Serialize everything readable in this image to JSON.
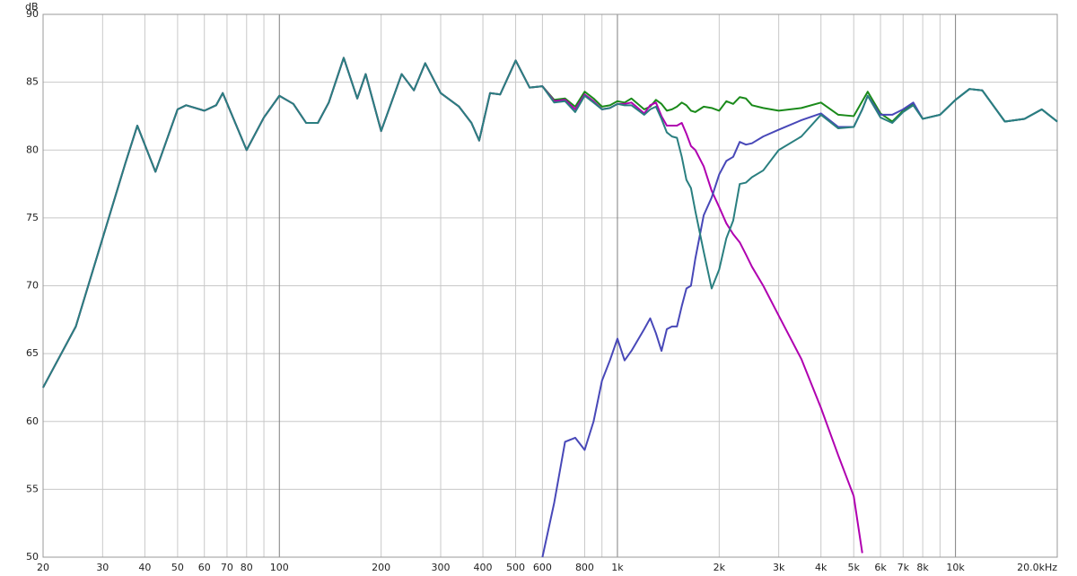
{
  "chart_data": {
    "type": "line",
    "log_x": true,
    "grid": true,
    "y_label": "dB",
    "xlim": [
      20,
      20000
    ],
    "ylim": [
      50,
      90
    ],
    "yticks": [
      50,
      55,
      60,
      65,
      70,
      75,
      80,
      85,
      90
    ],
    "xticks": [
      20,
      30,
      40,
      50,
      60,
      70,
      80,
      100,
      200,
      300,
      400,
      500,
      600,
      800,
      {
        "value": 1000,
        "label": "1k"
      },
      {
        "value": 2000,
        "label": "2k"
      },
      {
        "value": 3000,
        "label": "3k"
      },
      {
        "value": 4000,
        "label": "4k"
      },
      {
        "value": 5000,
        "label": "5k"
      },
      {
        "value": 6000,
        "label": "6k"
      },
      {
        "value": 7000,
        "label": "7k"
      },
      {
        "value": 8000,
        "label": "8k"
      },
      {
        "value": 10000,
        "label": "10k"
      },
      {
        "value": 20000,
        "label": "20.0kHz"
      }
    ],
    "x_minor_grid": [
      90,
      900,
      9000
    ],
    "x": [
      20,
      25,
      30,
      35,
      38,
      43,
      50,
      53,
      60,
      65,
      68,
      80,
      90,
      100,
      110,
      120,
      130,
      140,
      155,
      170,
      180,
      200,
      230,
      250,
      270,
      300,
      340,
      370,
      390,
      420,
      450,
      500,
      550,
      600,
      650,
      700,
      750,
      800,
      850,
      900,
      950,
      1000,
      1050,
      1100,
      1200,
      1250,
      1300,
      1350,
      1400,
      1450,
      1500,
      1550,
      1600,
      1650,
      1700,
      1800,
      1900,
      2000,
      2100,
      2200,
      2300,
      2400,
      2500,
      2700,
      3000,
      3500,
      4000,
      4500,
      5000,
      5300,
      5500,
      6000,
      6500,
      7000,
      7500,
      8000,
      9000,
      10000,
      11000,
      12000,
      14000,
      16000,
      18000,
      20000
    ],
    "series": [
      {
        "color": "#1a8a1a",
        "values": [
          62.5,
          67,
          73.5,
          79,
          81.8,
          78.4,
          83,
          83.3,
          82.9,
          83.3,
          84.2,
          80,
          82.4,
          84,
          83.4,
          82,
          82,
          83.5,
          86.8,
          83.8,
          85.6,
          81.4,
          85.6,
          84.4,
          86.4,
          84.2,
          83.2,
          82,
          80.7,
          84.2,
          84.1,
          86.6,
          84.6,
          84.7,
          83.7,
          83.8,
          83.2,
          84.3,
          83.8,
          83.2,
          83.3,
          83.6,
          83.5,
          83.8,
          83.0,
          83.2,
          83.7,
          83.4,
          82.9,
          83.0,
          83.2,
          83.5,
          83.3,
          82.9,
          82.8,
          83.2,
          83.1,
          82.9,
          83.6,
          83.4,
          83.9,
          83.8,
          83.3,
          83.1,
          82.9,
          83.1,
          83.5,
          82.6,
          82.5,
          83.6,
          84.3,
          82.7,
          82.1,
          82.9,
          83.4,
          82.3,
          82.6,
          83.7,
          84.5,
          84.4,
          82.1,
          82.3,
          83.0,
          82.1
        ]
      },
      {
        "color": "#b000b0",
        "values": [
          62.5,
          67,
          73.5,
          79,
          81.8,
          78.4,
          83,
          83.3,
          82.9,
          83.3,
          84.2,
          80,
          82.4,
          84,
          83.4,
          82,
          82,
          83.5,
          86.8,
          83.8,
          85.6,
          81.4,
          85.6,
          84.4,
          86.4,
          84.2,
          83.2,
          82,
          80.7,
          84.2,
          84.1,
          86.6,
          84.6,
          84.7,
          83.6,
          83.7,
          83.0,
          84.1,
          83.6,
          83.0,
          83.1,
          83.4,
          83.4,
          83.5,
          82.7,
          83.3,
          83.5,
          82.5,
          81.8,
          81.8,
          81.8,
          82.0,
          81.2,
          80.3,
          80.0,
          78.8,
          77.0,
          75.8,
          74.6,
          73.8,
          73.2,
          72.3,
          71.4,
          70.0,
          67.8,
          64.6,
          61.0,
          57.5,
          54.5,
          50.3,
          null,
          null,
          null,
          null,
          null,
          null,
          null,
          null,
          null,
          null,
          null,
          null,
          null,
          null
        ]
      },
      {
        "color": "#4848b8",
        "values": [
          null,
          null,
          null,
          null,
          null,
          null,
          null,
          null,
          null,
          null,
          null,
          null,
          null,
          null,
          null,
          null,
          null,
          null,
          null,
          null,
          null,
          null,
          null,
          null,
          null,
          null,
          null,
          null,
          null,
          null,
          null,
          null,
          null,
          50,
          54,
          58.5,
          58.8,
          57.9,
          60,
          63,
          64.5,
          66.1,
          64.5,
          65.2,
          66.8,
          67.6,
          66.5,
          65.2,
          66.8,
          67.0,
          67.0,
          68.5,
          69.8,
          70.0,
          72,
          75.2,
          76.5,
          78.2,
          79.2,
          79.5,
          80.6,
          80.4,
          80.5,
          81.0,
          81.5,
          82.2,
          82.7,
          81.7,
          81.7,
          83.0,
          84.0,
          82.6,
          82.6,
          83.0,
          83.5,
          82.3,
          82.6,
          83.7,
          84.5,
          84.4,
          82.1,
          82.3,
          83.0,
          82.1
        ]
      },
      {
        "color": "#2a7f80",
        "values": [
          62.5,
          67,
          73.5,
          79,
          81.8,
          78.4,
          83,
          83.3,
          82.9,
          83.3,
          84.2,
          80,
          82.4,
          84,
          83.4,
          82,
          82,
          83.5,
          86.8,
          83.8,
          85.6,
          81.4,
          85.6,
          84.4,
          86.4,
          84.2,
          83.2,
          82,
          80.7,
          84.2,
          84.1,
          86.6,
          84.6,
          84.7,
          83.5,
          83.6,
          82.8,
          84.0,
          83.5,
          83.0,
          83.1,
          83.4,
          83.3,
          83.3,
          82.6,
          83.0,
          83.2,
          82.3,
          81.3,
          81.0,
          80.9,
          79.5,
          77.8,
          77.2,
          75.5,
          72.5,
          69.8,
          71.2,
          73.5,
          74.8,
          77.5,
          77.6,
          78.0,
          78.5,
          80.0,
          81.0,
          82.6,
          81.6,
          81.7,
          83.0,
          84.0,
          82.4,
          82.0,
          82.8,
          83.3,
          82.3,
          82.6,
          83.7,
          84.5,
          84.4,
          82.1,
          82.3,
          83.0,
          82.1
        ]
      }
    ]
  }
}
